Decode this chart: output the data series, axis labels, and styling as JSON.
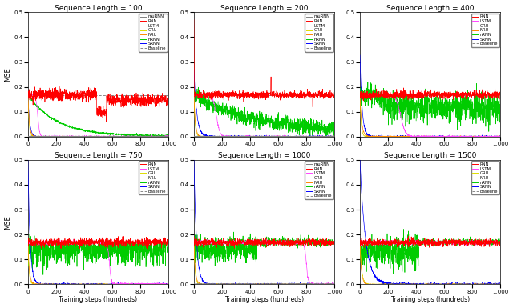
{
  "subplots": [
    {
      "title": "Sequence Length = 100",
      "curves": [
        "muRNN",
        "RNN",
        "LSTM",
        "GRU",
        "NRU",
        "nRNN",
        "SRNN"
      ]
    },
    {
      "title": "Sequence Length = 200",
      "curves": [
        "muRNN",
        "RNN",
        "LSTM",
        "GRU",
        "NRU",
        "nRNN",
        "SRNN"
      ]
    },
    {
      "title": "Sequence Length = 400",
      "curves": [
        "RNN",
        "LSTM",
        "GRU",
        "NRU",
        "nRNN",
        "SRNN"
      ]
    },
    {
      "title": "Sequence Length = 750",
      "curves": [
        "RNN",
        "LSTM",
        "GRU",
        "NRU",
        "nRNN",
        "SRNN"
      ]
    },
    {
      "title": "Sequence Length = 1000",
      "curves": [
        "muRNN",
        "RNN",
        "LSTM",
        "GRU",
        "NRU",
        "nRNN",
        "SRNN"
      ]
    },
    {
      "title": "Sequence Length = 1500",
      "curves": [
        "RNN",
        "LSTM",
        "GRU",
        "NRU",
        "nRNN",
        "SRNN"
      ]
    }
  ],
  "colors": {
    "muRNN": "#808080",
    "RNN": "#ff0000",
    "LSTM": "#ff44ff",
    "GRU": "#dddd00",
    "NRU": "#ff8800",
    "nRNN": "#00cc00",
    "SRNN": "#0000ff",
    "Baseline": "#888888"
  },
  "baseline": 0.168,
  "xlim": [
    0,
    1000
  ],
  "ylim": [
    0,
    0.5
  ],
  "xticks": [
    0,
    200,
    400,
    600,
    800,
    1000
  ],
  "yticks": [
    0,
    0.1,
    0.2,
    0.3,
    0.4,
    0.5
  ],
  "xlabel": "Training steps (hundreds)",
  "ylabel": "MSE",
  "n_steps": 1000
}
